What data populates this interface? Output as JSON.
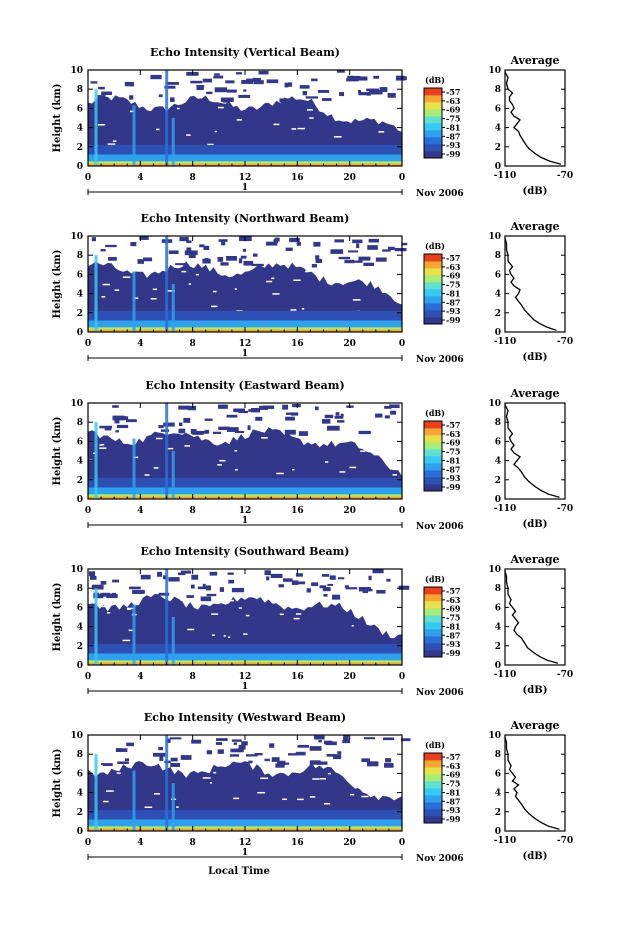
{
  "colors": {
    "background": "#3a3f8f",
    "scale": [
      "#33378a",
      "#2e4fb4",
      "#2a6fd8",
      "#2fa0ee",
      "#36c9f2",
      "#5fe0d0",
      "#a8ec7a",
      "#e8e24a",
      "#f7a632",
      "#e8401e"
    ]
  },
  "chart_data": [
    {
      "type": "heatmap",
      "title": "Echo Intensity (Vertical Beam)",
      "ylabel": "Height (km)",
      "xlabel": "",
      "x_ticks": [
        "0",
        "4",
        "8",
        "12",
        "16",
        "20",
        "0"
      ],
      "y_ticks": [
        "0",
        "2",
        "4",
        "6",
        "8",
        "10"
      ],
      "xlim": [
        0,
        24
      ],
      "ylim": [
        0,
        10
      ],
      "date_marker": "1",
      "date_label": "Nov 2006",
      "colorbar_unit": "(dB)",
      "colorbar_ticks": [
        "-57",
        "-63",
        "-69",
        "-75",
        "-81",
        "-87",
        "-93",
        "-99"
      ],
      "profile": {
        "title": "Average",
        "xlabel": "(dB)",
        "x_ticks": [
          "-110",
          "-70"
        ],
        "y_ticks": [
          "0",
          "2",
          "4",
          "6",
          "8",
          "10"
        ],
        "xlim": [
          -110,
          -70
        ],
        "ylim": [
          0,
          10
        ],
        "points": [
          [
            -73,
            0.2
          ],
          [
            -80,
            0.5
          ],
          [
            -86,
            0.9
          ],
          [
            -90,
            1.3
          ],
          [
            -94,
            1.8
          ],
          [
            -96,
            2.2
          ],
          [
            -98,
            2.7
          ],
          [
            -100,
            3.2
          ],
          [
            -101,
            3.6
          ],
          [
            -104,
            4.0
          ],
          [
            -102,
            4.4
          ],
          [
            -100,
            4.8
          ],
          [
            -104,
            5.2
          ],
          [
            -106,
            5.6
          ],
          [
            -104,
            6.0
          ],
          [
            -105,
            6.4
          ],
          [
            -107,
            6.8
          ],
          [
            -107,
            7.2
          ],
          [
            -105,
            7.6
          ],
          [
            -108,
            8.0
          ],
          [
            -109,
            8.6
          ],
          [
            -108,
            9.2
          ],
          [
            -110,
            9.8
          ]
        ]
      }
    },
    {
      "type": "heatmap",
      "title": "Echo Intensity (Northward Beam)",
      "ylabel": "Height (km)",
      "xlabel": "",
      "x_ticks": [
        "0",
        "4",
        "8",
        "12",
        "16",
        "20",
        "0"
      ],
      "y_ticks": [
        "0",
        "2",
        "4",
        "6",
        "8",
        "10"
      ],
      "xlim": [
        0,
        24
      ],
      "ylim": [
        0,
        10
      ],
      "date_marker": "1",
      "date_label": "Nov 2006",
      "colorbar_unit": "(dB)",
      "colorbar_ticks": [
        "-57",
        "-63",
        "-69",
        "-75",
        "-81",
        "-87",
        "-93",
        "-99"
      ],
      "profile": {
        "title": "Average",
        "xlabel": "(dB)",
        "x_ticks": [
          "-110",
          "-70"
        ],
        "y_ticks": [
          "0",
          "2",
          "4",
          "6",
          "8",
          "10"
        ],
        "xlim": [
          -110,
          -70
        ],
        "ylim": [
          0,
          10
        ],
        "points": [
          [
            -76,
            0.2
          ],
          [
            -82,
            0.5
          ],
          [
            -87,
            0.9
          ],
          [
            -91,
            1.3
          ],
          [
            -94,
            1.8
          ],
          [
            -97,
            2.3
          ],
          [
            -99,
            2.8
          ],
          [
            -101,
            3.2
          ],
          [
            -103,
            3.6
          ],
          [
            -101,
            4.0
          ],
          [
            -100,
            4.4
          ],
          [
            -104,
            4.8
          ],
          [
            -106,
            5.2
          ],
          [
            -104,
            5.6
          ],
          [
            -106,
            6.0
          ],
          [
            -107,
            6.4
          ],
          [
            -105,
            6.8
          ],
          [
            -108,
            7.4
          ],
          [
            -108,
            8.0
          ],
          [
            -109,
            8.6
          ],
          [
            -109,
            9.2
          ],
          [
            -110,
            9.8
          ]
        ]
      }
    },
    {
      "type": "heatmap",
      "title": "Echo Intensity (Eastward Beam)",
      "ylabel": "Height (km)",
      "xlabel": "",
      "x_ticks": [
        "0",
        "4",
        "8",
        "12",
        "16",
        "20",
        "0"
      ],
      "y_ticks": [
        "0",
        "2",
        "4",
        "6",
        "8",
        "10"
      ],
      "xlim": [
        0,
        24
      ],
      "ylim": [
        0,
        10
      ],
      "date_marker": "1",
      "date_label": "Nov 2006",
      "colorbar_unit": "(dB)",
      "colorbar_ticks": [
        "-57",
        "-63",
        "-69",
        "-75",
        "-81",
        "-87",
        "-93",
        "-99"
      ],
      "profile": {
        "title": "Average",
        "xlabel": "(dB)",
        "x_ticks": [
          "-110",
          "-70"
        ],
        "y_ticks": [
          "0",
          "2",
          "4",
          "6",
          "8",
          "10"
        ],
        "xlim": [
          -110,
          -70
        ],
        "ylim": [
          0,
          10
        ],
        "points": [
          [
            -74,
            0.2
          ],
          [
            -81,
            0.5
          ],
          [
            -86,
            0.9
          ],
          [
            -90,
            1.3
          ],
          [
            -94,
            1.8
          ],
          [
            -97,
            2.3
          ],
          [
            -99,
            2.8
          ],
          [
            -101,
            3.2
          ],
          [
            -104,
            3.6
          ],
          [
            -102,
            4.0
          ],
          [
            -100,
            4.4
          ],
          [
            -104,
            4.8
          ],
          [
            -106,
            5.2
          ],
          [
            -104,
            5.6
          ],
          [
            -106,
            6.0
          ],
          [
            -107,
            6.4
          ],
          [
            -105,
            6.8
          ],
          [
            -108,
            7.4
          ],
          [
            -108,
            8.0
          ],
          [
            -109,
            8.6
          ],
          [
            -108,
            9.2
          ],
          [
            -110,
            9.8
          ]
        ]
      }
    },
    {
      "type": "heatmap",
      "title": "Echo Intensity (Southward Beam)",
      "ylabel": "Height (km)",
      "xlabel": "",
      "x_ticks": [
        "0",
        "4",
        "8",
        "12",
        "16",
        "20",
        "0"
      ],
      "y_ticks": [
        "0",
        "2",
        "4",
        "6",
        "8",
        "10"
      ],
      "xlim": [
        0,
        24
      ],
      "ylim": [
        0,
        10
      ],
      "date_marker": "1",
      "date_label": "Nov 2006",
      "colorbar_unit": "(dB)",
      "colorbar_ticks": [
        "-57",
        "-63",
        "-69",
        "-75",
        "-81",
        "-87",
        "-93",
        "-99"
      ],
      "profile": {
        "title": "Average",
        "xlabel": "(dB)",
        "x_ticks": [
          "-110",
          "-70"
        ],
        "y_ticks": [
          "0",
          "2",
          "4",
          "6",
          "8",
          "10"
        ],
        "xlim": [
          -110,
          -70
        ],
        "ylim": [
          0,
          10
        ],
        "points": [
          [
            -75,
            0.2
          ],
          [
            -82,
            0.5
          ],
          [
            -87,
            0.9
          ],
          [
            -91,
            1.3
          ],
          [
            -95,
            1.8
          ],
          [
            -97,
            2.3
          ],
          [
            -99,
            2.8
          ],
          [
            -102,
            3.2
          ],
          [
            -104,
            3.6
          ],
          [
            -103,
            4.0
          ],
          [
            -101,
            4.4
          ],
          [
            -103,
            4.8
          ],
          [
            -105,
            5.2
          ],
          [
            -103,
            5.6
          ],
          [
            -105,
            6.0
          ],
          [
            -107,
            6.4
          ],
          [
            -106,
            6.8
          ],
          [
            -108,
            7.4
          ],
          [
            -108,
            8.0
          ],
          [
            -109,
            8.6
          ],
          [
            -109,
            9.2
          ],
          [
            -110,
            9.8
          ]
        ]
      }
    },
    {
      "type": "heatmap",
      "title": "Echo Intensity (Westward Beam)",
      "ylabel": "Height (km)",
      "xlabel": "Local Time",
      "x_ticks": [
        "0",
        "4",
        "8",
        "12",
        "16",
        "20",
        "0"
      ],
      "y_ticks": [
        "0",
        "2",
        "4",
        "6",
        "8",
        "10"
      ],
      "xlim": [
        0,
        24
      ],
      "ylim": [
        0,
        10
      ],
      "date_marker": "1",
      "date_label": "Nov 2006",
      "colorbar_unit": "(dB)",
      "colorbar_ticks": [
        "-57",
        "-63",
        "-69",
        "-75",
        "-81",
        "-87",
        "-93",
        "-99"
      ],
      "profile": {
        "title": "Average",
        "xlabel": "(dB)",
        "x_ticks": [
          "-110",
          "-70"
        ],
        "y_ticks": [
          "0",
          "2",
          "4",
          "6",
          "8",
          "10"
        ],
        "xlim": [
          -110,
          -70
        ],
        "ylim": [
          0,
          10
        ],
        "points": [
          [
            -74,
            0.2
          ],
          [
            -81,
            0.5
          ],
          [
            -86,
            0.9
          ],
          [
            -90,
            1.3
          ],
          [
            -94,
            1.8
          ],
          [
            -97,
            2.3
          ],
          [
            -99,
            2.8
          ],
          [
            -101,
            3.2
          ],
          [
            -103,
            3.6
          ],
          [
            -102,
            4.0
          ],
          [
            -104,
            4.4
          ],
          [
            -101,
            4.8
          ],
          [
            -105,
            5.2
          ],
          [
            -103,
            5.6
          ],
          [
            -105,
            6.0
          ],
          [
            -107,
            6.4
          ],
          [
            -106,
            6.8
          ],
          [
            -108,
            7.4
          ],
          [
            -108,
            8.0
          ],
          [
            -109,
            8.6
          ],
          [
            -109,
            9.2
          ],
          [
            -110,
            9.8
          ]
        ]
      }
    }
  ]
}
